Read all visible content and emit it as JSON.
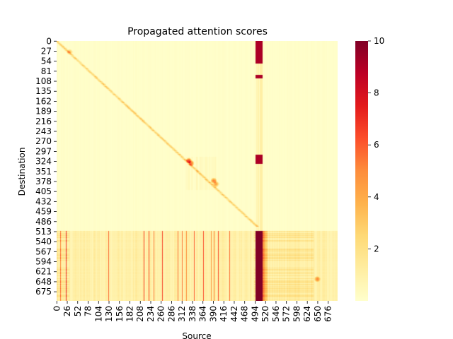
{
  "chart_data": {
    "type": "heatmap",
    "title": "Propagated attention scores",
    "xlabel": "Source",
    "ylabel": "Destination",
    "n_rows": 700,
    "n_cols": 700,
    "value_range": [
      0,
      10
    ],
    "colormap": "YlOrRd",
    "colormap_stops": [
      "#ffffcc",
      "#ffeda0",
      "#fed976",
      "#feb24c",
      "#fd8d3c",
      "#fc4e2a",
      "#e31a1c",
      "#bd0026",
      "#800026"
    ],
    "x_ticks": [
      0,
      26,
      52,
      78,
      104,
      130,
      156,
      182,
      208,
      234,
      260,
      286,
      312,
      338,
      364,
      390,
      416,
      442,
      468,
      494,
      520,
      546,
      572,
      598,
      624,
      650,
      676
    ],
    "y_ticks": [
      0,
      27,
      54,
      81,
      108,
      135,
      162,
      189,
      216,
      243,
      270,
      297,
      324,
      351,
      378,
      405,
      432,
      459,
      486,
      513,
      540,
      567,
      594,
      621,
      648,
      675
    ],
    "colorbar_ticks": [
      2,
      4,
      6,
      8,
      10
    ],
    "features": {
      "diagonal_band": {
        "from": [
          0,
          0
        ],
        "to": [
          500,
          500
        ],
        "value": 4
      },
      "strong_column_band": {
        "cols": [
          494,
          512
        ],
        "rows": [
          0,
          700
        ],
        "value": 10
      },
      "dense_region_start_row": 510,
      "dense_region_column_stripes": [
        2,
        8,
        16,
        22,
        128,
        131,
        133,
        140,
        168,
        216,
        229,
        241,
        262,
        281,
        301,
        312,
        322,
        342,
        364,
        378,
        384,
        391,
        402,
        430,
        466,
        471
      ],
      "hot_spots": [
        {
          "row": 28,
          "col": 31,
          "value": 3
        },
        {
          "row": 321,
          "col": 328,
          "value": 6
        },
        {
          "row": 328,
          "col": 334,
          "value": 5
        },
        {
          "row": 375,
          "col": 390,
          "value": 5
        },
        {
          "row": 384,
          "col": 396,
          "value": 4
        },
        {
          "row": 640,
          "col": 648,
          "value": 4
        }
      ]
    }
  }
}
